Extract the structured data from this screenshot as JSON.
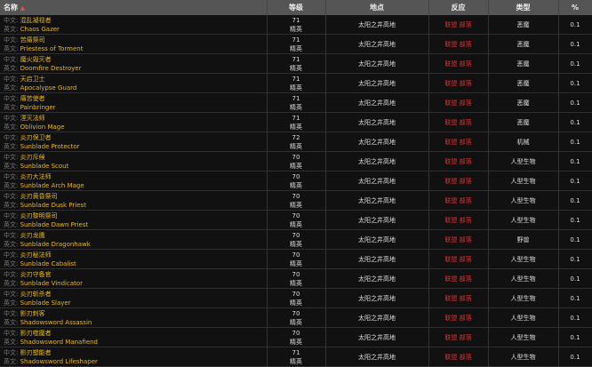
{
  "headers": {
    "name": "名称",
    "level": "等级",
    "location": "地点",
    "reaction": "反应",
    "type": "类型",
    "percent": "%"
  },
  "labels": {
    "cn": "中文:",
    "en": "英文:"
  },
  "rows": [
    {
      "cn": "混乱凝视者",
      "en": "Chaos Gazer",
      "level": "71",
      "rank": "精英",
      "location": "太阳之井高地",
      "reaction": "联盟 部落",
      "type": "恶魔",
      "percent": "0.1"
    },
    {
      "cn": "苦痛祭司",
      "en": "Priestess of Torment",
      "level": "71",
      "rank": "精英",
      "location": "太阳之井高地",
      "reaction": "联盟 部落",
      "type": "恶魔",
      "percent": "0.1"
    },
    {
      "cn": "魔火毁灭者",
      "en": "Doomfire Destroyer",
      "level": "71",
      "rank": "精英",
      "location": "太阳之井高地",
      "reaction": "联盟 部落",
      "type": "恶魔",
      "percent": "0.1"
    },
    {
      "cn": "天启卫士",
      "en": "Apocalypse Guard",
      "level": "71",
      "rank": "精英",
      "location": "太阳之井高地",
      "reaction": "联盟 部落",
      "type": "恶魔",
      "percent": "0.1"
    },
    {
      "cn": "痛苦使者",
      "en": "Painbringer",
      "level": "71",
      "rank": "精英",
      "location": "太阳之井高地",
      "reaction": "联盟 部落",
      "type": "恶魔",
      "percent": "0.1"
    },
    {
      "cn": "湮灭法师",
      "en": "Oblivion Mage",
      "level": "71",
      "rank": "精英",
      "location": "太阳之井高地",
      "reaction": "联盟 部落",
      "type": "恶魔",
      "percent": "0.1"
    },
    {
      "cn": "炎刃保卫者",
      "en": "Sunblade Protector",
      "level": "72",
      "rank": "精英",
      "location": "太阳之井高地",
      "reaction": "联盟 部落",
      "type": "机械",
      "percent": "0.1"
    },
    {
      "cn": "炎刃斥候",
      "en": "Sunblade Scout",
      "level": "70",
      "rank": "精英",
      "location": "太阳之井高地",
      "reaction": "联盟 部落",
      "type": "人型生物",
      "percent": "0.1"
    },
    {
      "cn": "炎刃大法师",
      "en": "Sunblade Arch Mage",
      "level": "70",
      "rank": "精英",
      "location": "太阳之井高地",
      "reaction": "联盟 部落",
      "type": "人型生物",
      "percent": "0.1"
    },
    {
      "cn": "炎刃黄昏祭司",
      "en": "Sunblade Dusk Priest",
      "level": "70",
      "rank": "精英",
      "location": "太阳之井高地",
      "reaction": "联盟 部落",
      "type": "人型生物",
      "percent": "0.1"
    },
    {
      "cn": "炎刃黎明祭司",
      "en": "Sunblade Dawn Priest",
      "level": "70",
      "rank": "精英",
      "location": "太阳之井高地",
      "reaction": "联盟 部落",
      "type": "人型生物",
      "percent": "0.1"
    },
    {
      "cn": "炎刃龙鹰",
      "en": "Sunblade Dragonhawk",
      "level": "70",
      "rank": "精英",
      "location": "太阳之井高地",
      "reaction": "联盟 部落",
      "type": "野兽",
      "percent": "0.1"
    },
    {
      "cn": "炎刃秘法师",
      "en": "Sunblade Cabalist",
      "level": "70",
      "rank": "精英",
      "location": "太阳之井高地",
      "reaction": "联盟 部落",
      "type": "人型生物",
      "percent": "0.1"
    },
    {
      "cn": "炎刃守备官",
      "en": "Sunblade Vindicator",
      "level": "70",
      "rank": "精英",
      "location": "太阳之井高地",
      "reaction": "联盟 部落",
      "type": "人型生物",
      "percent": "0.1"
    },
    {
      "cn": "炎刃斩杀者",
      "en": "Sunblade Slayer",
      "level": "70",
      "rank": "精英",
      "location": "太阳之井高地",
      "reaction": "联盟 部落",
      "type": "人型生物",
      "percent": "0.1"
    },
    {
      "cn": "影刃刺客",
      "en": "Shadowsword Assassin",
      "level": "70",
      "rank": "精英",
      "location": "太阳之井高地",
      "reaction": "联盟 部落",
      "type": "人型生物",
      "percent": "0.1"
    },
    {
      "cn": "影刃噬魔者",
      "en": "Shadowsword Manafiend",
      "level": "70",
      "rank": "精英",
      "location": "太阳之井高地",
      "reaction": "联盟 部落",
      "type": "人型生物",
      "percent": "0.1"
    },
    {
      "cn": "影刃塑能者",
      "en": "Shadowsword Lifeshaper",
      "level": "71",
      "rank": "精英",
      "location": "太阳之井高地",
      "reaction": "联盟 部落",
      "type": "人型生物",
      "percent": "0.1"
    }
  ]
}
